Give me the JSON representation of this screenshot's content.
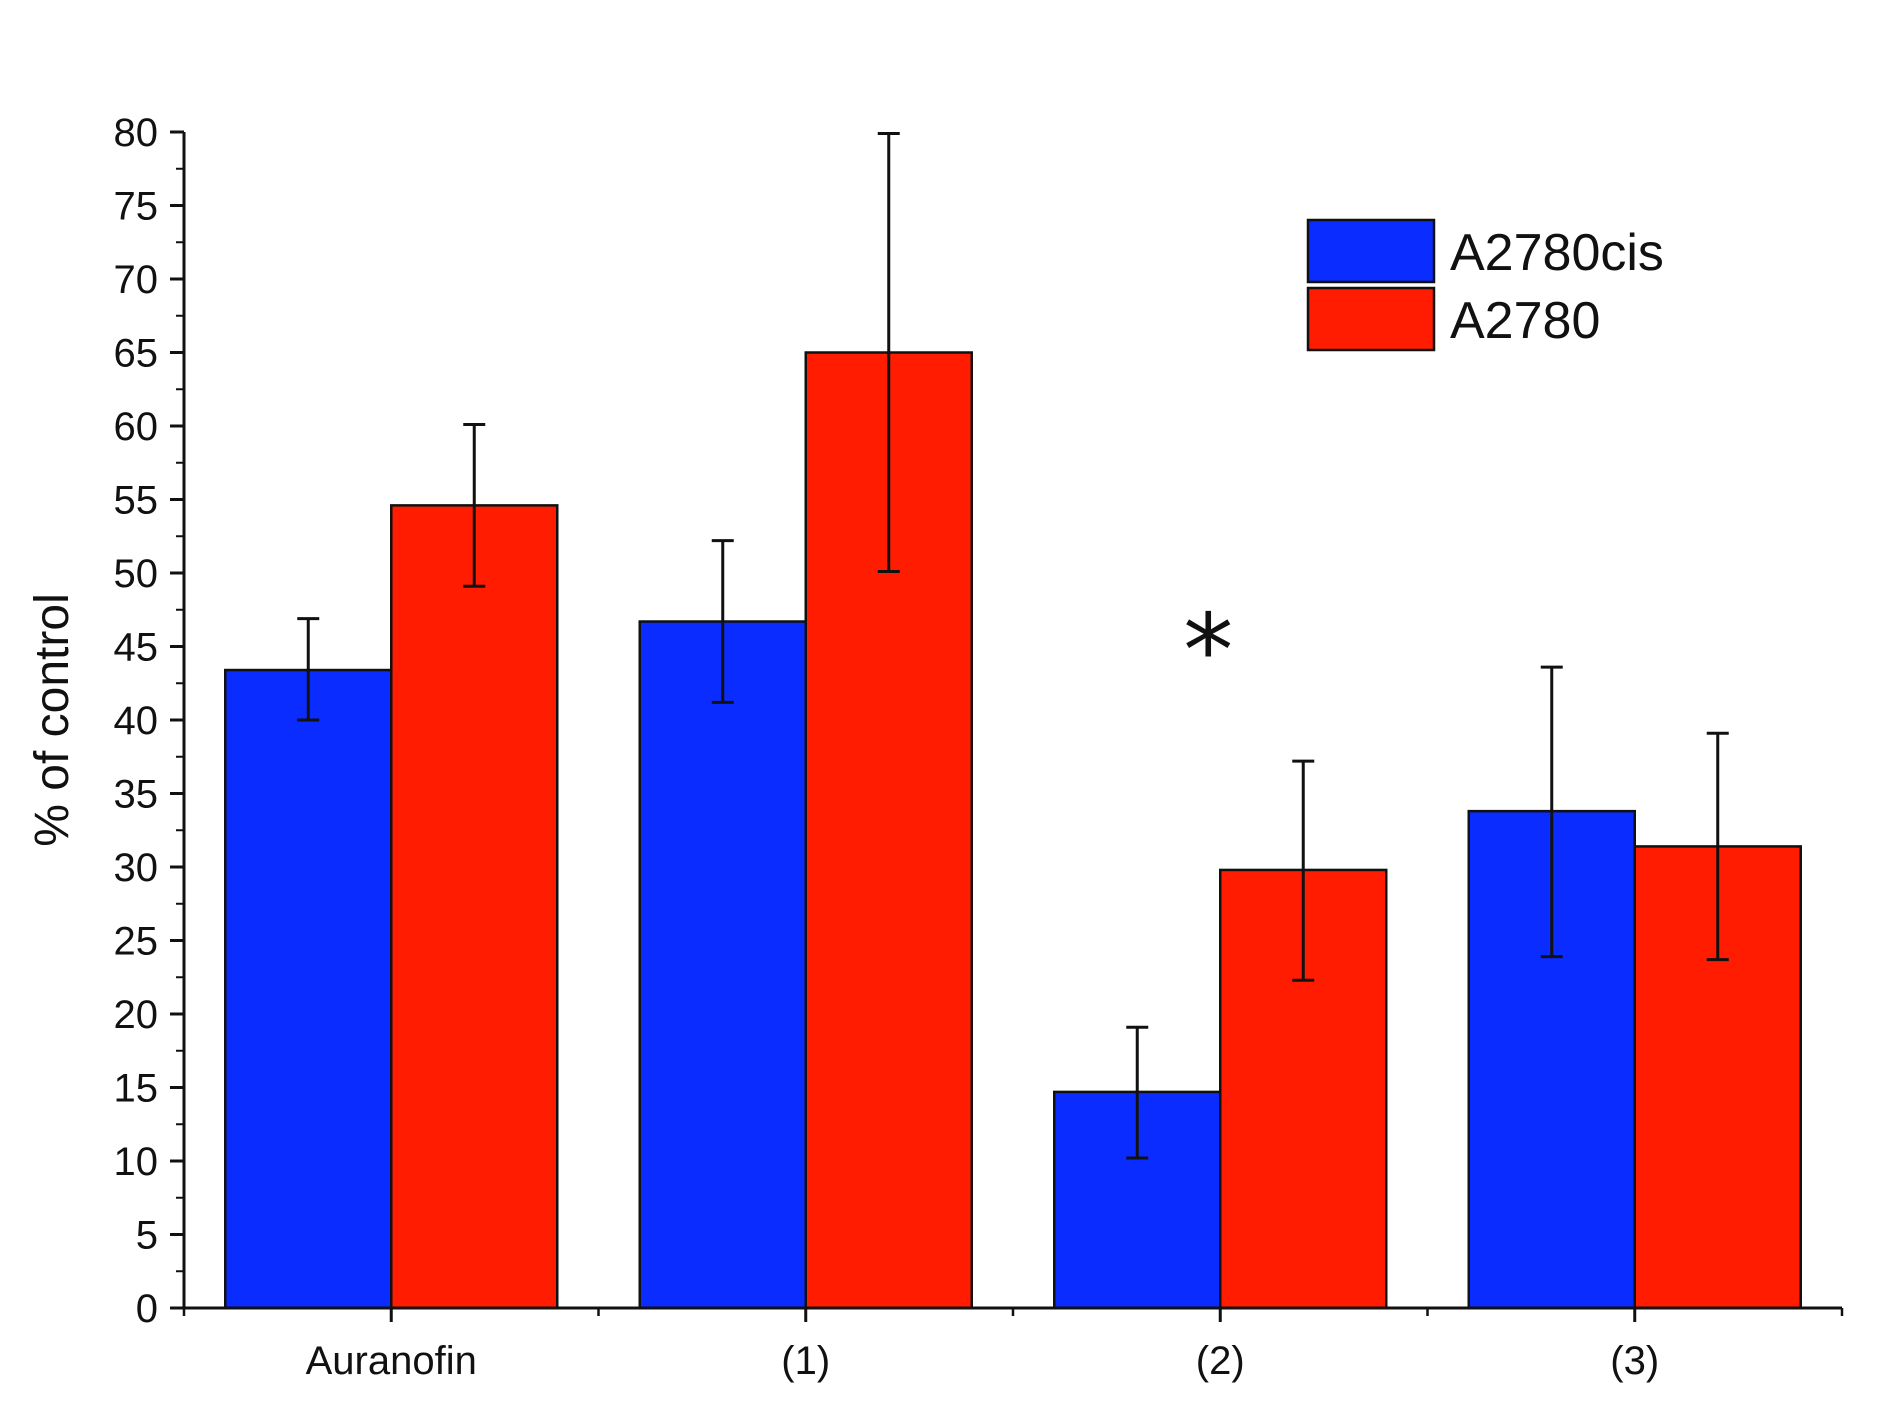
{
  "chart_data": {
    "type": "bar",
    "title": "",
    "xlabel": "",
    "ylabel": "% of control",
    "ylim": [
      0,
      80
    ],
    "ytick_step": 5,
    "ytick_labels": [
      "0",
      "5",
      "10",
      "15",
      "20",
      "25",
      "30",
      "35",
      "40",
      "45",
      "50",
      "55",
      "60",
      "65",
      "70",
      "75",
      "80"
    ],
    "categories": [
      "Auranofin",
      "(1)",
      "(2)",
      "(3)"
    ],
    "series": [
      {
        "name": "A2780cis",
        "color": "#0a2cff",
        "values": [
          43.4,
          46.7,
          14.7,
          33.8
        ],
        "err_low": [
          40.0,
          41.2,
          10.2,
          23.9
        ],
        "err_high": [
          46.9,
          52.2,
          19.1,
          43.6
        ]
      },
      {
        "name": "A2780",
        "color": "#ff1c00",
        "values": [
          54.6,
          65.0,
          29.8,
          31.4
        ],
        "err_low": [
          49.1,
          50.1,
          22.3,
          23.7
        ],
        "err_high": [
          60.1,
          79.9,
          37.2,
          39.1
        ]
      }
    ],
    "legend_position": "top-right",
    "grid": false,
    "annotations": [
      {
        "text": "*",
        "category": "(2)",
        "y": 47
      }
    ]
  }
}
